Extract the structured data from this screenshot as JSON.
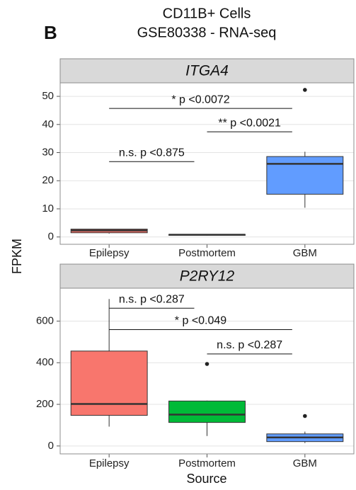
{
  "panel_label": "B",
  "title": [
    "CD11B+ Cells",
    "GSE80338 - RNA-seq"
  ],
  "y_label": "FPKM",
  "x_label": "Source",
  "chart_data": [
    {
      "type": "box",
      "title": "ITGA4",
      "categories": [
        "Epilepsy",
        "Postmortem",
        "GBM"
      ],
      "colors": [
        "#F8766D",
        "#00BA38",
        "#619CFF"
      ],
      "boxes": [
        {
          "min": 1.2,
          "q1": 1.5,
          "median": 2.3,
          "q3": 2.8,
          "max": 2.8,
          "outliers": []
        },
        {
          "min": 0.5,
          "q1": 0.6,
          "median": 0.8,
          "q3": 0.9,
          "max": 1.0,
          "outliers": []
        },
        {
          "min": 10.4,
          "q1": 15.2,
          "median": 26,
          "q3": 28.6,
          "max": 30.3,
          "outliers": [
            52.3
          ]
        }
      ],
      "annotations": [
        {
          "text": "* p <0.0072",
          "y": 45.7,
          "from": "Epilepsy",
          "to": "GBM"
        },
        {
          "text": "** p <0.0021",
          "y": 37.4,
          "from": "Postmortem",
          "to": "GBM"
        },
        {
          "text": "n.s. p <0.875",
          "y": 26.8,
          "from": "Epilepsy",
          "to": "Postmortem"
        }
      ],
      "ylim": [
        -2.6,
        54.8
      ],
      "yticks": [
        0,
        10,
        20,
        30,
        40,
        50
      ],
      "grid": true
    },
    {
      "type": "box",
      "title": "P2RY12",
      "categories": [
        "Epilepsy",
        "Postmortem",
        "GBM"
      ],
      "colors": [
        "#F8766D",
        "#00BA38",
        "#619CFF"
      ],
      "boxes": [
        {
          "min": 93,
          "q1": 147,
          "median": 202,
          "q3": 456,
          "max": 706,
          "outliers": []
        },
        {
          "min": 48,
          "q1": 113,
          "median": 151,
          "q3": 216,
          "max": 218,
          "outliers": [
            394
          ]
        },
        {
          "min": 14,
          "q1": 21,
          "median": 41,
          "q3": 58,
          "max": 69,
          "outliers": [
            144
          ]
        }
      ],
      "annotations": [
        {
          "text": "n.s. p <0.287",
          "y": 662,
          "from": "Epilepsy",
          "to": "Postmortem"
        },
        {
          "text": "* p <0.049",
          "y": 559,
          "from": "Epilepsy",
          "to": "GBM"
        },
        {
          "text": "n.s. p <0.287",
          "y": 442,
          "from": "Postmortem",
          "to": "GBM"
        }
      ],
      "ylim": [
        -38,
        758
      ],
      "yticks": [
        0,
        200,
        400,
        600
      ],
      "grid": true
    }
  ]
}
